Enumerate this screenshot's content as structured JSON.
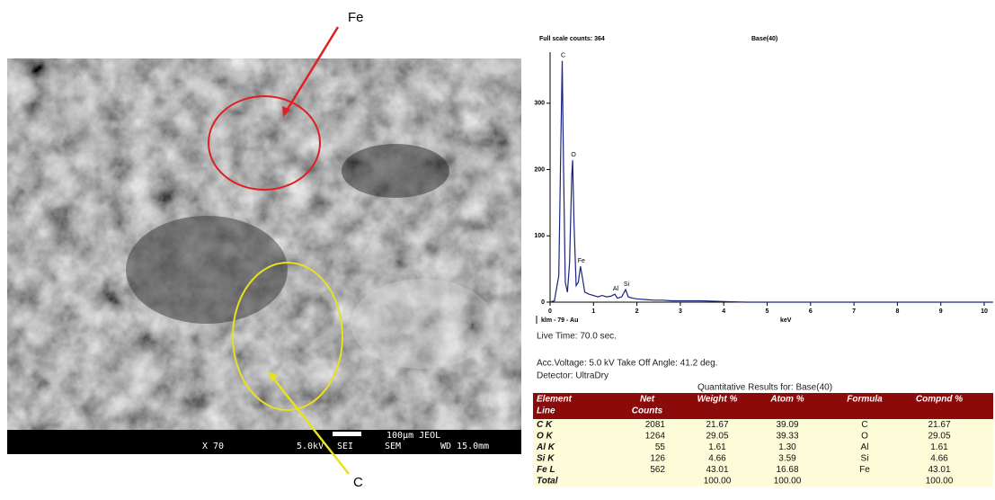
{
  "sem": {
    "labels": [
      "Fe",
      "C"
    ],
    "scale_bar": "100µm JEOL",
    "info_bar": [
      "X 70",
      "5.0kV",
      "SEI",
      "SEM",
      "WD 15.0mm"
    ]
  },
  "chart_data": {
    "type": "line",
    "title": "Full scale counts: 364",
    "subtitle": "Base(40)",
    "x_label": "keV",
    "footer": "klm - 79 - Au",
    "color": "#1a237e",
    "x": [
      0,
      0.1,
      0.2,
      0.25,
      0.28,
      0.31,
      0.35,
      0.4,
      0.45,
      0.5,
      0.52,
      0.55,
      0.6,
      0.65,
      0.7,
      0.75,
      0.8,
      0.9,
      1.0,
      1.1,
      1.2,
      1.3,
      1.4,
      1.49,
      1.55,
      1.65,
      1.74,
      1.8,
      1.9,
      2.0,
      2.2,
      2.4,
      2.6,
      2.8,
      3.0,
      3.5,
      4.0,
      4.5,
      5,
      6,
      7,
      8,
      9,
      10,
      10.2
    ],
    "values": [
      0,
      2,
      40,
      250,
      364,
      200,
      30,
      15,
      60,
      190,
      214,
      120,
      25,
      30,
      54,
      35,
      15,
      12,
      10,
      8,
      10,
      8,
      9,
      12,
      6,
      8,
      19,
      8,
      6,
      5,
      4,
      3,
      3,
      2,
      2,
      2,
      1,
      0,
      0,
      0,
      0,
      0,
      0,
      0,
      0
    ],
    "annotations": [
      {
        "text": "C",
        "x": 0.28,
        "y": 364
      },
      {
        "text": "O",
        "x": 0.52,
        "y": 214
      },
      {
        "text": "Fe",
        "x": 0.7,
        "y": 54
      },
      {
        "text": "Al",
        "x": 1.49,
        "y": 12
      },
      {
        "text": "Si",
        "x": 1.74,
        "y": 19
      }
    ],
    "xlim": [
      0,
      10.2
    ],
    "ylim": [
      0,
      377
    ],
    "xticks": [
      0,
      1,
      2,
      3,
      4,
      5,
      6,
      7,
      8,
      9,
      10
    ],
    "yticks": [
      0,
      100,
      200,
      300
    ]
  },
  "details": {
    "live_time": "Live Time: 70.0 sec.",
    "voltage": "Acc.Voltage: 5.0 kV  Take Off Angle: 41.2 deg.",
    "detector": "Detector: UltraDry",
    "results_title": "Quantitative Results for: Base(40)"
  },
  "table": {
    "header": [
      [
        "Element",
        "Line"
      ],
      [
        "Net",
        "Counts"
      ],
      [
        "Weight %"
      ],
      [
        "Atom %"
      ],
      [
        "Formula"
      ],
      [
        "Compnd %"
      ]
    ],
    "rows": [
      [
        "C K",
        "2081",
        "21.67",
        "39.09",
        "C",
        "21.67"
      ],
      [
        "O K",
        "1264",
        "29.05",
        "39.33",
        "O",
        "29.05"
      ],
      [
        "Al K",
        "55",
        "1.61",
        "1.30",
        "Al",
        "1.61"
      ],
      [
        "Si K",
        "126",
        "4.66",
        "3.59",
        "Si",
        "4.66"
      ],
      [
        "Fe L",
        "562",
        "43.01",
        "16.68",
        "Fe",
        "43.01"
      ],
      [
        "Total",
        null,
        "100.00",
        "100.00",
        null,
        "100.00"
      ]
    ]
  }
}
